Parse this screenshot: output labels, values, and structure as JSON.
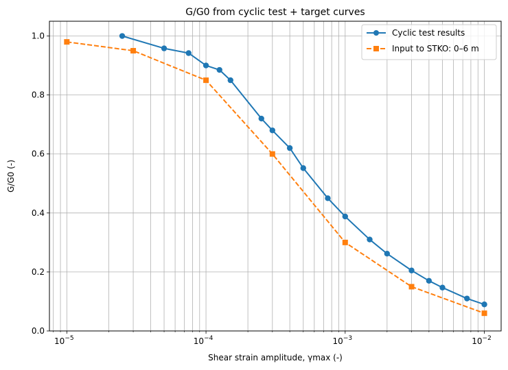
{
  "chart_data": {
    "type": "line",
    "title": "G/G0 from cyclic test + target curves",
    "xlabel": "Shear strain amplitude, γmax (-)",
    "ylabel": "G/G0 (-)",
    "xscale": "log",
    "xlim": [
      7.5e-06,
      0.0132
    ],
    "ylim": [
      0,
      1.05
    ],
    "grid": "both major and minor on x, major on y",
    "legend_position": "top-right",
    "x_ticks": [
      {
        "value": 1e-05,
        "mantissa": "10",
        "exponent": "−5"
      },
      {
        "value": 0.0001,
        "mantissa": "10",
        "exponent": "−4"
      },
      {
        "value": 0.001,
        "mantissa": "10",
        "exponent": "−3"
      },
      {
        "value": 0.01,
        "mantissa": "10",
        "exponent": "−2"
      }
    ],
    "y_ticks": [
      {
        "value": 0.0,
        "label": "0.0"
      },
      {
        "value": 0.2,
        "label": "0.2"
      },
      {
        "value": 0.4,
        "label": "0.4"
      },
      {
        "value": 0.6,
        "label": "0.6"
      },
      {
        "value": 0.8,
        "label": "0.8"
      },
      {
        "value": 1.0,
        "label": "1.0"
      }
    ],
    "series": [
      {
        "name": "Cyclic test results",
        "color": "#1f77b4",
        "line_style": "solid",
        "marker": "circle",
        "x": [
          2.5e-05,
          5e-05,
          7.5e-05,
          0.0001,
          0.000125,
          0.00015,
          0.00025,
          0.0003,
          0.0004,
          0.0005,
          0.00075,
          0.001,
          0.0015,
          0.002,
          0.003,
          0.004,
          0.005,
          0.0075,
          0.01
        ],
        "y": [
          1.0,
          0.958,
          0.942,
          0.9,
          0.885,
          0.85,
          0.72,
          0.68,
          0.62,
          0.552,
          0.45,
          0.388,
          0.31,
          0.262,
          0.205,
          0.17,
          0.147,
          0.11,
          0.09
        ]
      },
      {
        "name": "Input to STKO: 0–6 m",
        "color": "#ff7f0e",
        "line_style": "dashed",
        "marker": "square",
        "x": [
          1e-05,
          3e-05,
          0.0001,
          0.0003,
          0.001,
          0.003,
          0.01
        ],
        "y": [
          0.98,
          0.95,
          0.85,
          0.6,
          0.3,
          0.15,
          0.06
        ]
      }
    ]
  }
}
